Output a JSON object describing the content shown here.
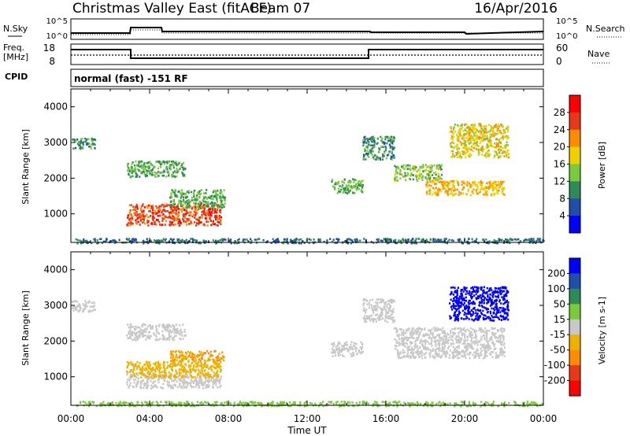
{
  "header": {
    "title": "Christmas Valley East (fitACF)",
    "beam": "Beam 07",
    "date": "16/Apr/2016"
  },
  "noise_panel": {
    "left_label": "N.Sky",
    "right_label": "N.Search",
    "left_ticks": [
      "10^5",
      "10^0"
    ],
    "right_ticks": [
      "10^5",
      "10^0"
    ]
  },
  "freq_panel": {
    "left_label": "Freq.",
    "left_unit": "[MHz]",
    "right_label": "Nave",
    "left_ticks": [
      "18",
      "8"
    ],
    "right_ticks": [
      "60",
      "0"
    ]
  },
  "cpid": {
    "label": "CPID",
    "value": "normal (fast) -151 RF"
  },
  "chart_data": [
    {
      "type": "heatmap",
      "panel": "power",
      "ylabel": "Slant Range [km]",
      "xlabel": "Time UT",
      "xlim_hours": [
        0,
        24
      ],
      "ylim_km": [
        200,
        4500
      ],
      "xticks": [
        "00:00",
        "04:00",
        "08:00",
        "12:00",
        "16:00",
        "20:00",
        "00:00"
      ],
      "yticks": [
        1000,
        2000,
        3000,
        4000
      ],
      "colorbar": {
        "label": "Power [dB]",
        "ticks": [
          "4",
          "8",
          "12",
          "16",
          "20",
          "24",
          "28"
        ],
        "colors": [
          "#0000ff",
          "#1f4fa8",
          "#2e8b57",
          "#7acb3a",
          "#f0d000",
          "#ff8c00",
          "#e8381a",
          "#ff0000"
        ]
      },
      "regions": [
        {
          "t": [
            2.8,
            7.6
          ],
          "r": [
            700,
            1300
          ],
          "value": 26
        },
        {
          "t": [
            5.0,
            7.8
          ],
          "r": [
            1200,
            1700
          ],
          "value": 12
        },
        {
          "t": [
            2.8,
            5.8
          ],
          "r": [
            2050,
            2500
          ],
          "value": 12
        },
        {
          "t": [
            0.0,
            1.2
          ],
          "r": [
            2850,
            3150
          ],
          "value": 10
        },
        {
          "t": [
            13.2,
            14.8
          ],
          "r": [
            1600,
            2000
          ],
          "value": 12
        },
        {
          "t": [
            14.8,
            16.4
          ],
          "r": [
            2550,
            3200
          ],
          "value": 10
        },
        {
          "t": [
            16.4,
            18.8
          ],
          "r": [
            1950,
            2400
          ],
          "value": 14
        },
        {
          "t": [
            18.0,
            22.0
          ],
          "r": [
            1550,
            1950
          ],
          "value": 20
        },
        {
          "t": [
            19.2,
            22.2
          ],
          "r": [
            2600,
            3550
          ],
          "value": 18
        },
        {
          "t": [
            0.2,
            24.0
          ],
          "r": [
            200,
            330
          ],
          "value": 8
        }
      ]
    },
    {
      "type": "heatmap",
      "panel": "velocity",
      "ylabel": "Slant Range [km]",
      "xlabel": "Time UT",
      "xlim_hours": [
        0,
        24
      ],
      "ylim_km": [
        200,
        4500
      ],
      "xticks": [
        "00:00",
        "04:00",
        "08:00",
        "12:00",
        "16:00",
        "20:00",
        "00:00"
      ],
      "yticks": [
        1000,
        2000,
        3000,
        4000
      ],
      "colorbar": {
        "label": "Velocity [m s-1]",
        "ticks": [
          "200",
          "100",
          "50",
          "15",
          "-15",
          "-50",
          "-100",
          "-200"
        ],
        "colors": [
          "#0000ff",
          "#1f4fa8",
          "#2e8b57",
          "#7acb3a",
          "#c8c8c8",
          "#f0b000",
          "#ff8c00",
          "#e8381a",
          "#ff0000"
        ]
      },
      "regions": [
        {
          "t": [
            2.8,
            7.6
          ],
          "r": [
            700,
            1100
          ],
          "value": 0
        },
        {
          "t": [
            2.8,
            7.6
          ],
          "r": [
            1000,
            1450
          ],
          "value": -40
        },
        {
          "t": [
            5.0,
            7.8
          ],
          "r": [
            1450,
            1750
          ],
          "value": -50
        },
        {
          "t": [
            2.8,
            5.8
          ],
          "r": [
            2050,
            2500
          ],
          "value": 0
        },
        {
          "t": [
            0.0,
            1.2
          ],
          "r": [
            2850,
            3150
          ],
          "value": 0
        },
        {
          "t": [
            13.2,
            14.8
          ],
          "r": [
            1600,
            2000
          ],
          "value": 0
        },
        {
          "t": [
            14.8,
            16.4
          ],
          "r": [
            2550,
            3200
          ],
          "value": 0
        },
        {
          "t": [
            16.4,
            22.0
          ],
          "r": [
            1550,
            2400
          ],
          "value": 0
        },
        {
          "t": [
            19.2,
            22.2
          ],
          "r": [
            2600,
            3550
          ],
          "value": 210
        },
        {
          "t": [
            0.2,
            24.0
          ],
          "r": [
            200,
            330
          ],
          "value": 30
        }
      ]
    }
  ]
}
